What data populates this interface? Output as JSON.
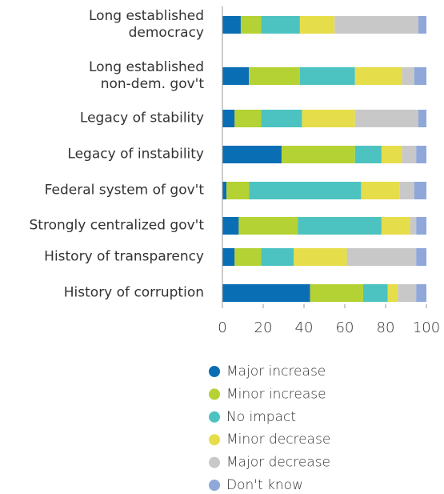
{
  "chart_data": {
    "type": "stacked_barh",
    "categories": [
      "Long established\ndemocracy",
      "Long established\nnon-dem. gov't",
      "Legacy of stability",
      "Legacy of instability",
      "Federal system of gov't",
      "Strongly centralized gov't",
      "History of transparency",
      "History of corruption"
    ],
    "series": [
      {
        "name": "Major increase",
        "color": "#0a6eb4",
        "values": [
          9,
          13,
          6,
          29,
          2,
          8,
          6,
          43
        ]
      },
      {
        "name": "Minor increase",
        "color": "#b4d233",
        "values": [
          10,
          25,
          13,
          36,
          11,
          29,
          13,
          26
        ]
      },
      {
        "name": "No impact",
        "color": "#4cc3c0",
        "values": [
          19,
          27,
          20,
          13,
          55,
          41,
          16,
          12
        ]
      },
      {
        "name": "Minor decrease",
        "color": "#e6dd4a",
        "values": [
          17,
          23,
          26,
          10,
          19,
          14,
          26,
          5
        ]
      },
      {
        "name": "Major decrease",
        "color": "#c8c8c8",
        "values": [
          41,
          6,
          31,
          7,
          7,
          3,
          34,
          9
        ]
      },
      {
        "name": "Don't know",
        "color": "#8fa8d9",
        "values": [
          4,
          6,
          4,
          5,
          6,
          5,
          5,
          5
        ]
      }
    ],
    "xlim": [
      0,
      100
    ],
    "xticks": [
      0,
      20,
      40,
      60,
      80,
      100
    ]
  }
}
